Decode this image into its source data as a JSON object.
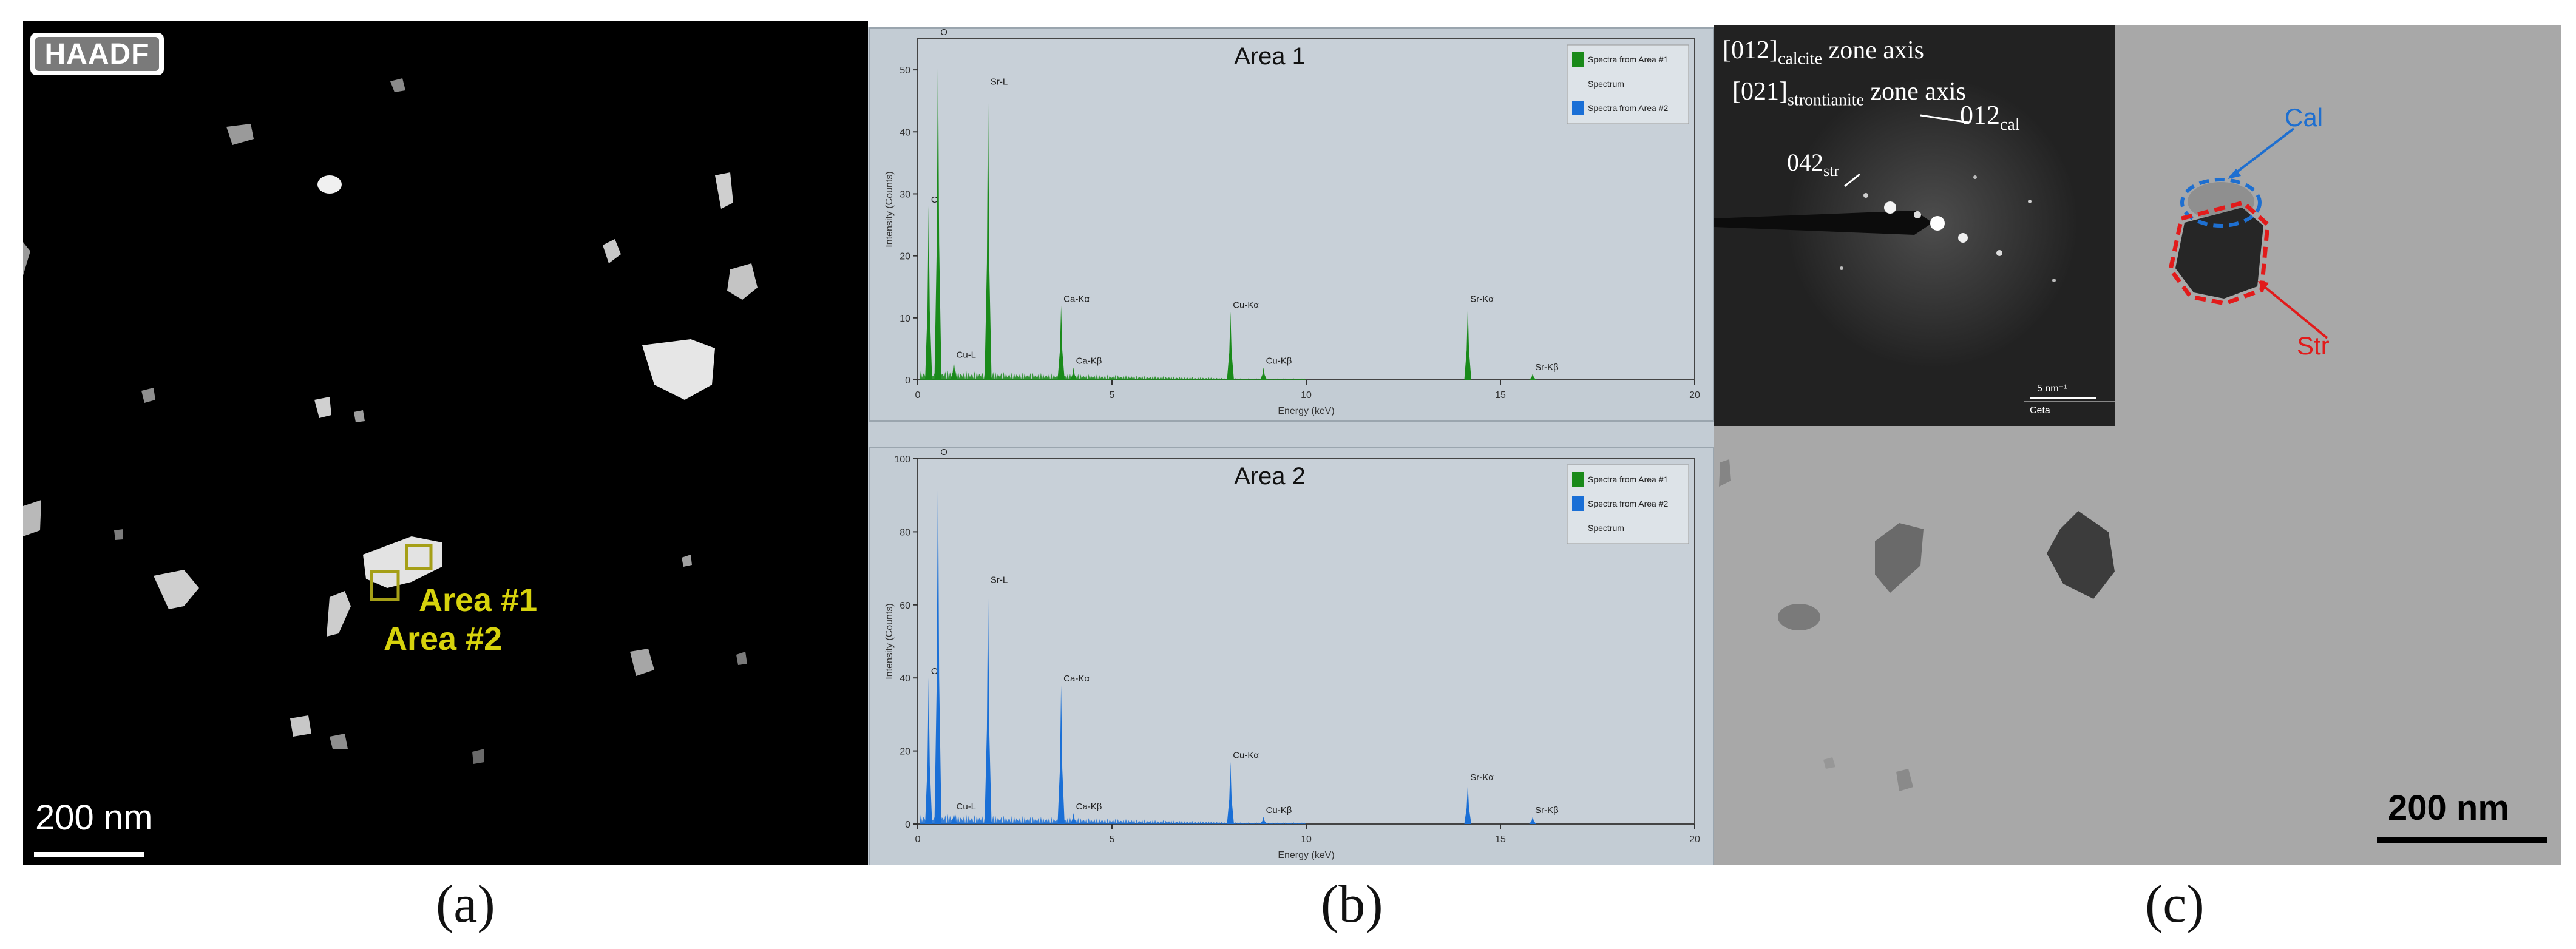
{
  "panel_a": {
    "badge": "HAADF",
    "area1_label": "Area #1",
    "area2_label": "Area #2",
    "scale_bar": "200 nm",
    "caption": "(a)"
  },
  "panel_b": {
    "caption": "(b)",
    "chart_data": [
      {
        "type": "line",
        "title": "Area 1",
        "xlabel": "Energy (keV)",
        "ylabel": "Intensity (Counts)",
        "xlim": [
          0,
          20
        ],
        "ylim": [
          0,
          55
        ],
        "xticks": [
          "0",
          "5",
          "10",
          "15",
          "20"
        ],
        "yticks": [
          "0",
          "10",
          "20",
          "30",
          "40",
          "50"
        ],
        "legend": [
          "Spectra from Area #1",
          "Spectrum",
          "Spectra from Area #2"
        ],
        "color": "#1a8a1a",
        "peaks": [
          {
            "x": 0.28,
            "y": 28,
            "label": "C"
          },
          {
            "x": 0.52,
            "y": 55,
            "label": "O"
          },
          {
            "x": 0.93,
            "y": 3,
            "label": "Cu-L"
          },
          {
            "x": 1.81,
            "y": 47,
            "label": "Sr-L"
          },
          {
            "x": 3.69,
            "y": 12,
            "label": "Ca-Kα"
          },
          {
            "x": 4.01,
            "y": 2,
            "label": "Ca-Kβ"
          },
          {
            "x": 8.05,
            "y": 11,
            "label": "Cu-Kα"
          },
          {
            "x": 8.9,
            "y": 2,
            "label": "Cu-Kβ"
          },
          {
            "x": 14.16,
            "y": 12,
            "label": "Sr-Kα"
          },
          {
            "x": 15.83,
            "y": 1,
            "label": "Sr-Kβ"
          }
        ]
      },
      {
        "type": "line",
        "title": "Area 2",
        "xlabel": "Energy (keV)",
        "ylabel": "Intensity (Counts)",
        "xlim": [
          0,
          20
        ],
        "ylim": [
          0,
          100
        ],
        "xticks": [
          "0",
          "5",
          "10",
          "15",
          "20"
        ],
        "yticks": [
          "0",
          "20",
          "40",
          "60",
          "80",
          "100"
        ],
        "legend": [
          "Spectra from Area #1",
          "Spectra from Area #2",
          "Spectrum"
        ],
        "color": "#1a6fd6",
        "peaks": [
          {
            "x": 0.28,
            "y": 40,
            "label": "C"
          },
          {
            "x": 0.52,
            "y": 100,
            "label": "O"
          },
          {
            "x": 0.93,
            "y": 3,
            "label": "Cu-L"
          },
          {
            "x": 1.81,
            "y": 65,
            "label": "Sr-L"
          },
          {
            "x": 3.69,
            "y": 38,
            "label": "Ca-Kα"
          },
          {
            "x": 4.01,
            "y": 3,
            "label": "Ca-Kβ"
          },
          {
            "x": 8.05,
            "y": 17,
            "label": "Cu-Kα"
          },
          {
            "x": 8.9,
            "y": 2,
            "label": "Cu-Kβ"
          },
          {
            "x": 14.16,
            "y": 11,
            "label": "Sr-Kα"
          },
          {
            "x": 15.83,
            "y": 2,
            "label": "Sr-Kβ"
          }
        ]
      }
    ]
  },
  "panel_c": {
    "saed_line1_main": "[012]",
    "saed_line1_sub": "calcite",
    "saed_line1_tail": " zone axis",
    "saed_line2_main": "[021]",
    "saed_line2_sub": "strontianite",
    "saed_line2_tail": " zone axis",
    "spot1_main": "012",
    "spot1_sub": "cal",
    "spot2_main": "042",
    "spot2_sub": "str",
    "inset_scale": "5 nm⁻¹",
    "inset_brand": "Ceta",
    "cal_label": "Cal",
    "str_label": "Str",
    "scale_bar": "200 nm",
    "caption": "(c)"
  }
}
